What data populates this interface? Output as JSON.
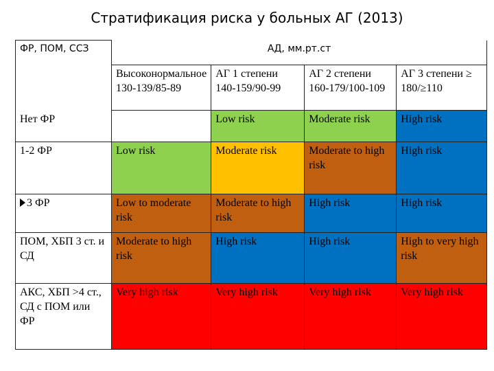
{
  "title": "Стратификация риска у больных АГ (2013)",
  "colors": {
    "green": "#8ed14f",
    "yellow": "#ffc000",
    "brown": "#bf5f0f",
    "blue": "#0070c0",
    "red": "#ff0000"
  },
  "header": {
    "row_label": "ФР, ПОМ, ССЗ",
    "bp_label": "АД, мм.рт.ст",
    "columns": [
      "Высоконормальное 130-139/85-89",
      "АГ 1 степени 140-159/90-99",
      "АГ 2 степени 160-179/100-109",
      "АГ 3 степени ≥ 180/≥110"
    ]
  },
  "rows": [
    {
      "label": "Нет ФР",
      "cells": [
        "",
        "Low risk",
        "Moderate risk",
        "High risk"
      ]
    },
    {
      "label": "1-2 ФР",
      "cells": [
        "Low risk",
        "Moderate risk",
        "Moderate to high risk",
        "High risk"
      ]
    },
    {
      "label": "3 ФР",
      "label_icon": "arrow-bullet-icon",
      "cells": [
        "Low to moderate risk",
        "Moderate to high risk",
        "High risk",
        "High risk"
      ]
    },
    {
      "label": "ПОМ, ХБП 3 ст. и СД",
      "cells": [
        "Moderate to high risk",
        "High risk",
        "High risk",
        "High to very high risk"
      ]
    },
    {
      "label": "АКС, ХБП >4 ст., СД с ПОМ или ФР",
      "cells": [
        "Very high risk",
        "Very high risk",
        "Very high risk",
        "Very high risk"
      ]
    }
  ]
}
